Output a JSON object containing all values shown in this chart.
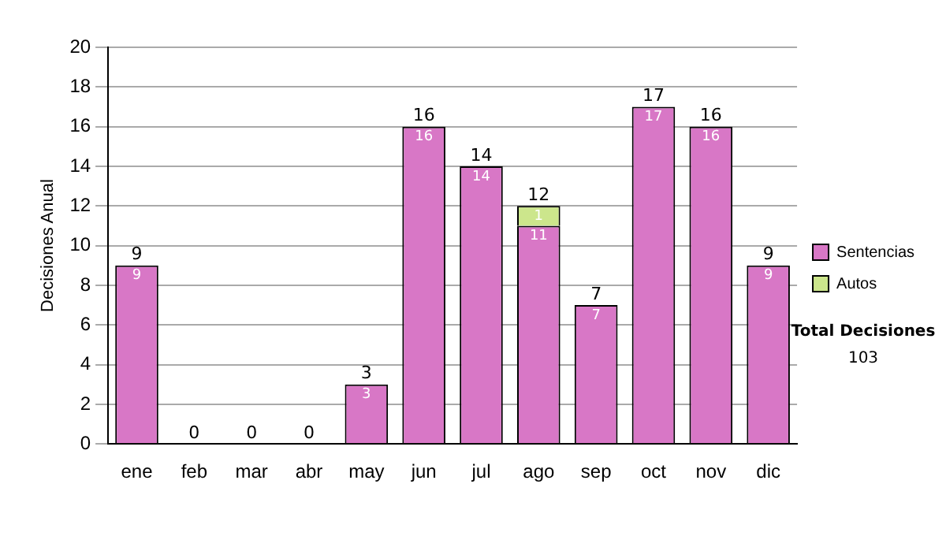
{
  "chart_data": {
    "type": "bar",
    "stacked": true,
    "ylabel": "Decisiones Anual",
    "categories": [
      "ene",
      "feb",
      "mar",
      "abr",
      "may",
      "jun",
      "jul",
      "ago",
      "sep",
      "oct",
      "nov",
      "dic"
    ],
    "series": [
      {
        "name": "Sentencias",
        "color": "#d877c6",
        "values": [
          9,
          0,
          0,
          0,
          3,
          16,
          14,
          11,
          7,
          17,
          16,
          9
        ],
        "value_labels": [
          "9",
          null,
          null,
          null,
          "3",
          "16",
          "14",
          "11",
          "7",
          "17",
          "16",
          "9"
        ]
      },
      {
        "name": "Autos",
        "color": "#cce68c",
        "values": [
          0,
          0,
          0,
          0,
          0,
          0,
          0,
          1,
          0,
          0,
          0,
          0
        ],
        "value_labels": [
          null,
          null,
          null,
          null,
          null,
          null,
          null,
          "1",
          null,
          null,
          null,
          null
        ]
      }
    ],
    "totals": [
      "9",
      "0",
      "0",
      "0",
      "3",
      "16",
      "14",
      "12",
      "7",
      "17",
      "16",
      "9"
    ],
    "ylim": [
      0,
      20
    ],
    "yticks": [
      0,
      2,
      4,
      6,
      8,
      10,
      12,
      14,
      16,
      18,
      20
    ],
    "grid": "y",
    "legend": "right",
    "annotations": [
      "Total Decisiones",
      "103"
    ]
  }
}
